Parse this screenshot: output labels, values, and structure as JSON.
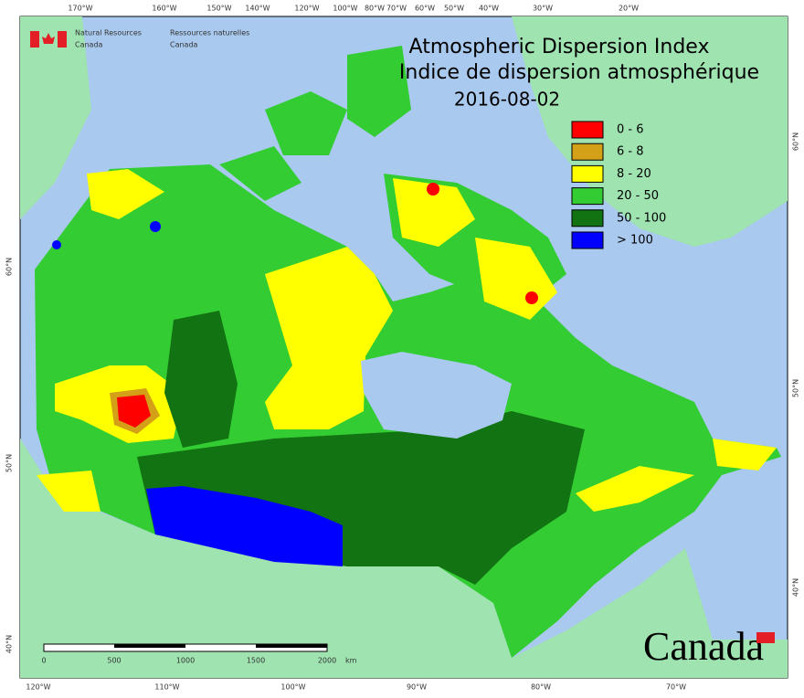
{
  "org": {
    "en_line1": "Natural Resources",
    "en_line2": "Canada",
    "fr_line1": "Ressources naturelles",
    "fr_line2": "Canada"
  },
  "title": {
    "en": "Atmospheric Dispersion Index",
    "fr": "Indice de dispersion atmosphérique",
    "date": "2016-08-02"
  },
  "legend": [
    {
      "label": "0 - 6",
      "color": "#ff0000"
    },
    {
      "label": "6 - 8",
      "color": "#d4a017"
    },
    {
      "label": "8 - 20",
      "color": "#ffff00"
    },
    {
      "label": "20 - 50",
      "color": "#33cc33"
    },
    {
      "label": "50 - 100",
      "color": "#127312"
    },
    {
      "label": "> 100",
      "color": "#0000ff"
    }
  ],
  "top_lon_labels": [
    "170°W",
    "160°W",
    "150°W",
    "140°W",
    "120°W",
    "100°W",
    "80°W",
    "70°W",
    "60°W",
    "50°W",
    "40°W",
    "30°W",
    "20°W"
  ],
  "bottom_lon_labels": [
    "120°W",
    "110°W",
    "100°W",
    "90°W",
    "80°W",
    "70°W"
  ],
  "left_lat_labels": [
    "60°N",
    "50°N",
    "40°N"
  ],
  "right_lat_labels": [
    "60°N",
    "50°N",
    "40°N"
  ],
  "scale_bar": {
    "ticks": [
      "0",
      "500",
      "1000",
      "1500",
      "2000"
    ],
    "unit": "km"
  },
  "wordmark": "Canada"
}
